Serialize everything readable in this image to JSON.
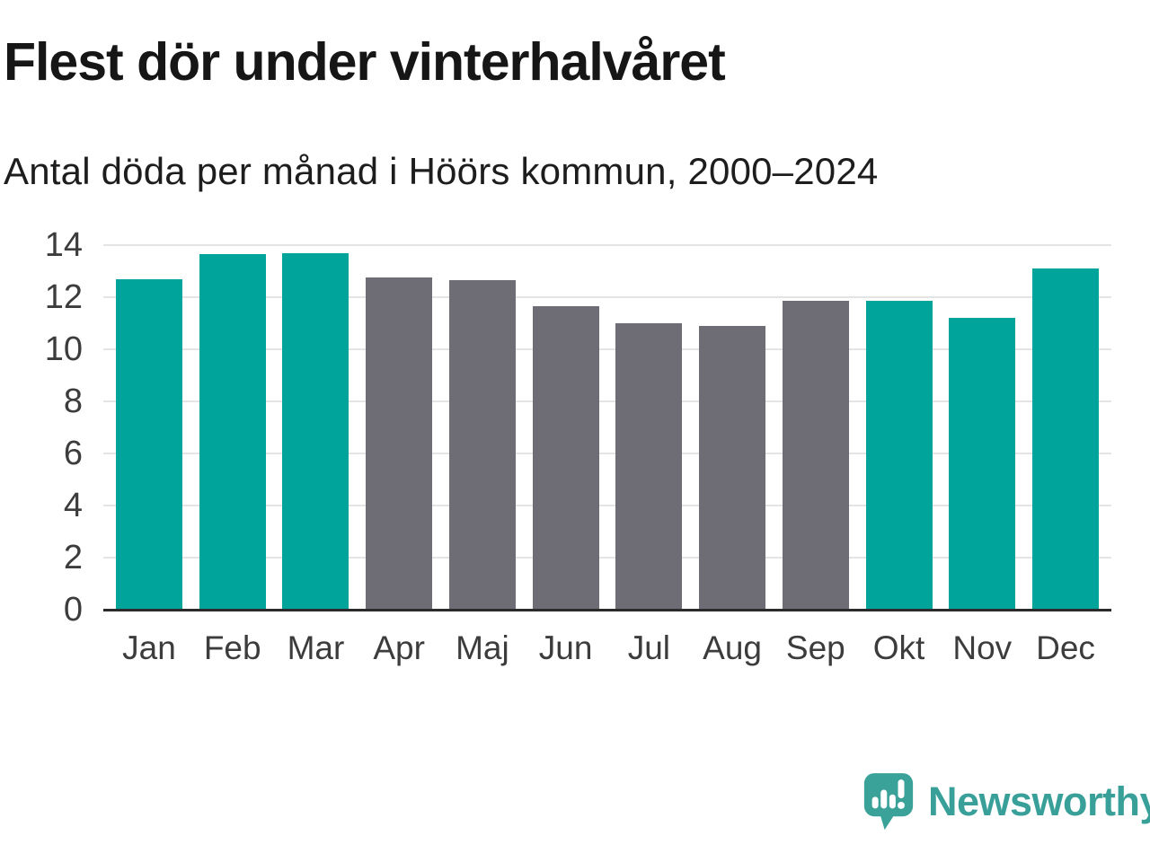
{
  "header": {
    "title": "Flest dör under vinterhalvåret",
    "subtitle": "Antal döda per månad i Höörs kommun, 2000–2024"
  },
  "chart_data": {
    "type": "bar",
    "title": "Flest dör under vinterhalvåret",
    "subtitle": "Antal döda per månad i Höörs kommun, 2000–2024",
    "categories": [
      "Jan",
      "Feb",
      "Mar",
      "Apr",
      "Maj",
      "Jun",
      "Jul",
      "Aug",
      "Sep",
      "Okt",
      "Nov",
      "Dec"
    ],
    "values": [
      12.7,
      13.65,
      13.7,
      12.75,
      12.65,
      11.65,
      11.0,
      10.9,
      11.85,
      11.85,
      11.2,
      13.1
    ],
    "bar_colors": [
      "teal",
      "teal",
      "teal",
      "gray",
      "gray",
      "gray",
      "gray",
      "gray",
      "gray",
      "teal",
      "teal",
      "teal"
    ],
    "palette": {
      "teal": "#00a49a",
      "gray": "#6e6c75"
    },
    "xlabel": "",
    "ylabel": "",
    "ylim": [
      0,
      14
    ],
    "y_ticks": [
      0,
      2,
      4,
      6,
      8,
      10,
      12,
      14
    ],
    "grid": true,
    "legend": false,
    "axis_color": "#2b2b2b",
    "gridline_color": "#e4e4e4"
  },
  "footer": {
    "brand": "Newsworthy",
    "brand_color": "#38a099",
    "logo_icon": "newsworthy-speech-bubble-chart-icon"
  }
}
